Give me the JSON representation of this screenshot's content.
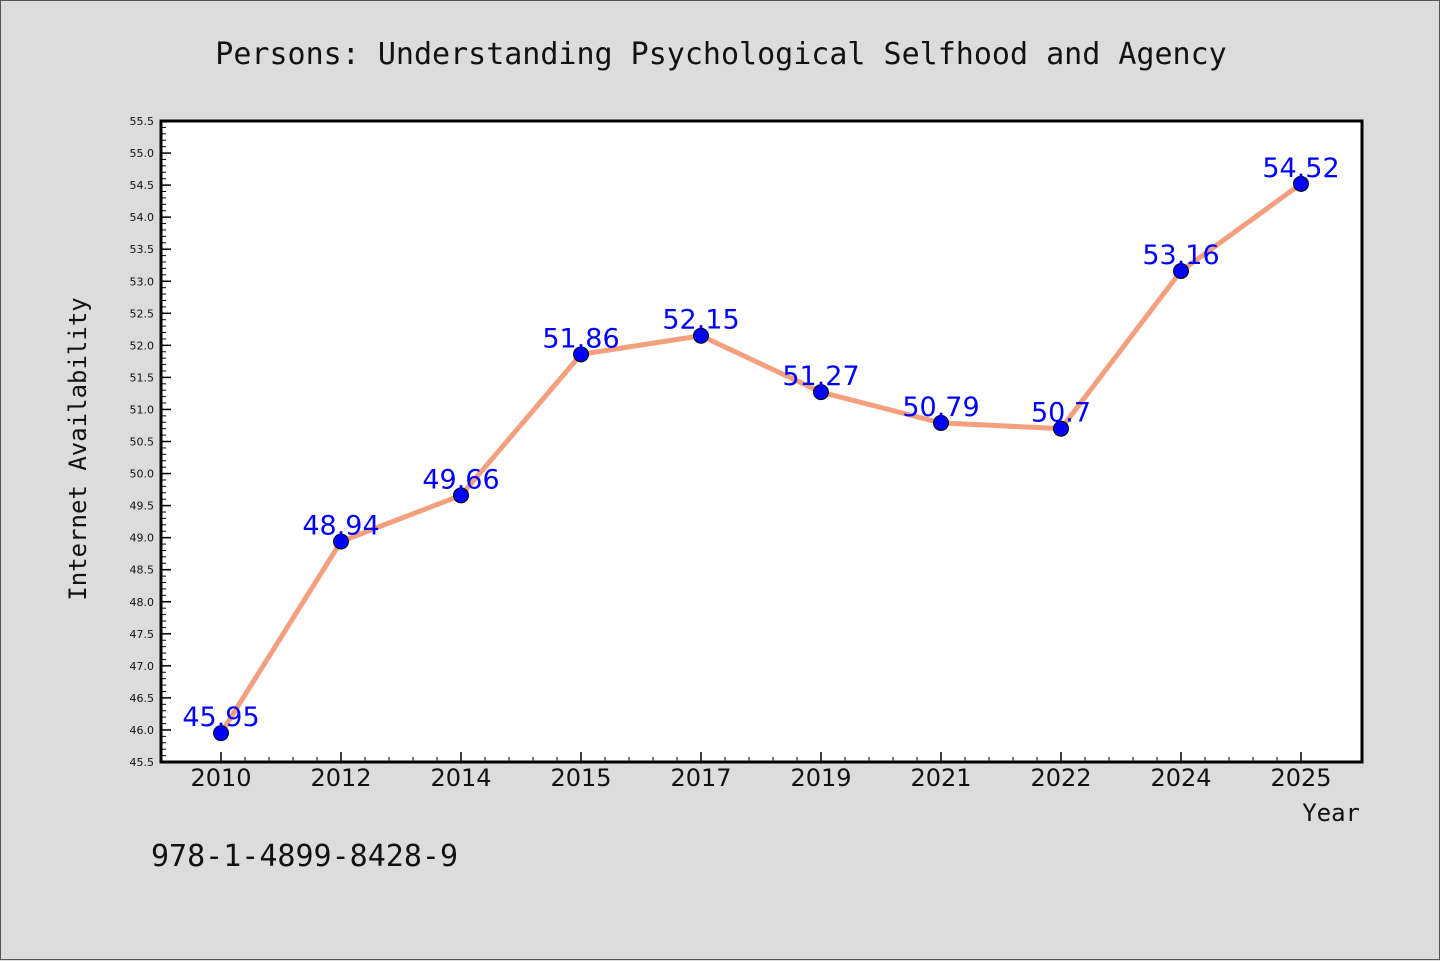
{
  "chart_data": {
    "type": "line",
    "title": "Persons: Understanding Psychological Selfhood and Agency",
    "xlabel": "Year",
    "ylabel": "Internet Availability",
    "categories": [
      "2010",
      "2012",
      "2014",
      "2015",
      "2017",
      "2019",
      "2021",
      "2022",
      "2024",
      "2025"
    ],
    "series": [
      {
        "values": [
          45.95,
          48.94,
          49.66,
          51.86,
          52.15,
          51.27,
          50.79,
          50.7,
          53.16,
          54.52
        ],
        "data_labels": [
          "45.95",
          "48.94",
          "49.66",
          "51.86",
          "52.15",
          "51.27",
          "50.79",
          "50.7",
          "53.16",
          "54.52"
        ],
        "line_color": "#f4a07f",
        "marker_color": "#0000ff"
      }
    ],
    "ylim": [
      45.5,
      55.5
    ],
    "y_ticks": [
      "45.5",
      "46.0",
      "46.5",
      "47.0",
      "47.5",
      "48.0",
      "48.5",
      "49.0",
      "49.5",
      "50.0",
      "50.5",
      "51.0",
      "51.5",
      "52.0",
      "52.5",
      "53.0",
      "53.5",
      "54.0",
      "54.5",
      "55.0",
      "55.5"
    ],
    "grid": false,
    "legend": "none",
    "label_color": "#0000ff"
  },
  "footer_text": "978-1-4899-8428-9",
  "background_color": "#dcdcdc"
}
